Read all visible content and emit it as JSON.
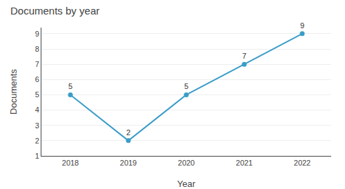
{
  "chart_data": {
    "type": "line",
    "title": "Documents by year",
    "xlabel": "Year",
    "ylabel": "Documents",
    "x": [
      2018,
      2019,
      2020,
      2021,
      2022
    ],
    "values": [
      5,
      2,
      5,
      7,
      9
    ],
    "color": "#3b9dc8",
    "marker": "circle",
    "data_labels": true,
    "xlim": [
      2017.5,
      2022.5
    ],
    "xticks": [
      2018,
      2019,
      2020,
      2021,
      2022
    ],
    "ylim": [
      1,
      9.4
    ],
    "yticks": [
      1,
      2,
      3,
      4,
      5,
      6,
      7,
      8,
      9
    ],
    "grid": "y"
  }
}
